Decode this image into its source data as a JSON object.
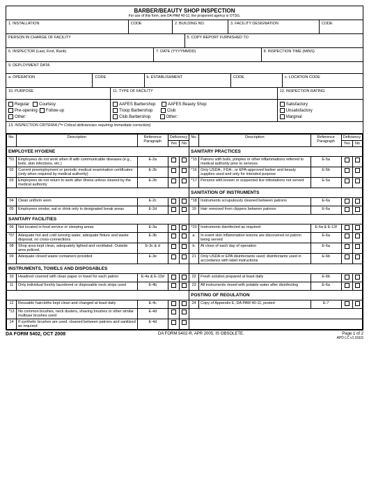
{
  "header": {
    "title": "BARBER/BEAUTY SHOP INSPECTION",
    "subtitle": "For use of this form, see DA PAM 40-11; the proponent agency is OTSG."
  },
  "fields": {
    "installation": "1. INSTALLATION",
    "code1": "CODE",
    "building": "2. BUILDING NO.",
    "facility_desig": "3. FACILITY DESIGNATION",
    "code2": "CODE",
    "person_in_charge": "PERSON IN CHARGE OF FACILITY",
    "copy_report": "5. COPY REPORT FURNISHED TO",
    "inspector": "6. INSPECTOR  (Last, First, Rank)",
    "date": "7. DATE  (YYYYMMDD)",
    "insp_time": "8. INSPECTION TIME  (MINS)",
    "deployment": "9. DEPLOYMENT DATA",
    "operation": "a. OPERATION",
    "code_a": "CODE",
    "establishment": "b. ESTABLISHMENT",
    "code_b": "CODE",
    "loc_code": "c. LOCATION CODE",
    "purpose": "10. PURPOSE",
    "type_facility": "11. TYPE OF FACILITY",
    "rating": "12. INSPECTION RATING",
    "criteria": "13. INSPECTION CRITERIA  (*= Critical deficiencies requiring immediate correction)"
  },
  "purpose_opts": {
    "regular": "Regular",
    "courtesy": "Courtesy",
    "preopening": "Pre-opening",
    "followup": "Follow-up",
    "other": "Other:"
  },
  "facility_opts": {
    "aafes_barber": "AAFES Barbershop",
    "aafes_beauty": "AAFES Beauty Shop",
    "troop": "Troop Barbershop",
    "club": "Club",
    "club_barber": "Club Barbershop",
    "other": "Other:"
  },
  "rating_opts": {
    "sat": "Satisfactory",
    "unsat": "Unsatisfactory",
    "marginal": "Marginal"
  },
  "table_hdr": {
    "no": "No.",
    "desc": "Description",
    "ref": "Reference\nParagraph",
    "def": "Deficiency",
    "yes": "Yes",
    "no_h": "No"
  },
  "groups": {
    "emp_hyg": "EMPLOYEE HYGIENE",
    "san_fac": "SANITARY FACILITIES",
    "instr": "INSTRUMENTS, TOWELS AND DISPOSABLES",
    "san_prac": "SANITARY PRACTICES",
    "san_instr": "SANITATION OF INSTRUMENTS",
    "posting": "POSTING OF REGULATION"
  },
  "left": [
    {
      "no": "*01",
      "desc": "Employees do not work when ill with communicable diseases (e.g., boils, skin infections, etc.)",
      "ref": "E-2a",
      "grp": "emp_hyg"
    },
    {
      "no": "02",
      "desc": "Current preemployment or periodic medical examination certificates (only when required by medical authority)",
      "ref": "E-2b"
    },
    {
      "no": "03",
      "desc": "Employees do not return to work after illness unless cleared by the medical authority",
      "ref": "E-2b"
    },
    {
      "no": "04",
      "desc": "Clean uniform worn",
      "ref": "E-2c"
    },
    {
      "no": "05",
      "desc": "Employees smoke, eat or drink only in designated break areas",
      "ref": "E-2d"
    },
    {
      "no": "06",
      "desc": "Not located in food service or sleeping areas",
      "ref": "E-3a",
      "grp": "san_fac"
    },
    {
      "no": "*07",
      "desc": "Adequate hot and cold running water, adequate fixture and waste disposal, no cross-connections",
      "ref": "E-3b"
    },
    {
      "no": "08",
      "desc": "Shop area kept clean, adequately lighted and ventilated. Outside area policed.",
      "ref": "E-3c & d"
    },
    {
      "no": "09",
      "desc": "Adequate closed waste containers provided",
      "ref": "E-3e"
    },
    {
      "no": "10",
      "desc": "Headrest covered with clean paper or towel for each patron",
      "ref": "E-4a & E-13d",
      "grp": "instr"
    },
    {
      "no": "11",
      "desc": "Only individual freshly laundered or disposable neck strips used",
      "ref": "E-4b"
    },
    {
      "no": "12",
      "desc": "Reusable haircloths kept clean and changed at least daily",
      "ref": "E-4c"
    },
    {
      "no": "*13",
      "desc": "No common brushes, neck dusters, shaving brushes or other similar multiuse brushes used",
      "ref": "E-4d"
    },
    {
      "no": "14",
      "desc": "If synthetic brushes are used, cleaned between patrons and sanitized as required",
      "ref": "E-4d"
    }
  ],
  "right": [
    {
      "no": "*15",
      "desc": "Patrons with boils, pimples or other inflammations referred to medical authority prior to services",
      "ref": "E-5a",
      "grp": "san_prac"
    },
    {
      "no": "*16",
      "desc": "Only USDA-, FDA-, or EPA-approved barber and beauty supplies used and only for intended purpose",
      "ref": "E-5b"
    },
    {
      "no": "*17",
      "desc": "Persons with known or suspected lice infestations not served",
      "ref": "E-5a"
    },
    {
      "no": "*18",
      "desc": "Instruments scrupulously cleaned between patrons",
      "ref": "E-6a",
      "grp": "san_instr"
    },
    {
      "no": "19",
      "desc": "Hair removed from clippers between patrons",
      "ref": "E-6a"
    },
    {
      "no": "*20",
      "desc": "Instruments disinfected as required:",
      "ref": "E-6a & E-13f"
    },
    {
      "no": "a.",
      "desc": "In event skin inflammation lesions are discovered on patron being served",
      "ref": "E-6a"
    },
    {
      "no": "b.",
      "desc": "At close of each day of operation",
      "ref": "E-6a"
    },
    {
      "no": "21",
      "desc": "Only USDA or EPA disinfectants used; disinfectants used in accordance with label instructions",
      "ref": "E-6b"
    },
    {
      "no": "22",
      "desc": "Fresh solution prepared at least daily",
      "ref": "E-6b"
    },
    {
      "no": "23",
      "desc": "All instruments rinsed with potable water after disinfecting",
      "ref": "E-6a"
    },
    {
      "no": "24",
      "desc": "Copy of Appendix E, DA PAM 40-11, posted",
      "ref": "E-7",
      "grp": "posting"
    }
  ],
  "footer": {
    "form_id": "DA FORM 5402, OCT 2008",
    "obsolete": "DA FORM 5402-R, APR 2005, IS OBSOLETE.",
    "page": "Page 1 of 2",
    "apd": "APD LC v1.01ES"
  }
}
